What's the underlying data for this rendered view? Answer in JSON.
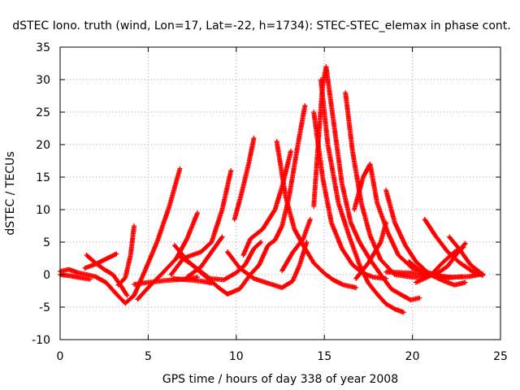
{
  "chart_data": {
    "type": "scatter",
    "title": "dSTEC Iono. truth (wind, Lon=17, Lat=-22, h=1734): STEC-STEC_elemax in phase cont.",
    "xlabel": "GPS time / hours of day 338 of year 2008",
    "ylabel": "dSTEC  / TECUs",
    "xlim": [
      0,
      25
    ],
    "ylim": [
      -10,
      35
    ],
    "xticks": [
      0,
      5,
      10,
      15,
      20,
      25
    ],
    "yticks": [
      -10,
      -5,
      0,
      5,
      10,
      15,
      20,
      25,
      30,
      35
    ],
    "grid": true,
    "marker": "plus",
    "color": "#ff0000",
    "tracks": [
      [
        [
          0,
          0.5
        ],
        [
          0.5,
          0.8
        ],
        [
          1,
          0.3
        ],
        [
          1.5,
          0
        ],
        [
          2,
          -0.3
        ],
        [
          2.6,
          -1.2
        ],
        [
          3.2,
          -3
        ],
        [
          3.7,
          -4.4
        ],
        [
          4.2,
          -3.2
        ],
        [
          4.8,
          0.5
        ],
        [
          5.5,
          5
        ],
        [
          6.2,
          10.5
        ],
        [
          6.8,
          16.3
        ]
      ],
      [
        [
          0,
          0
        ],
        [
          0.6,
          -0.2
        ],
        [
          1.2,
          -0.5
        ],
        [
          1.7,
          -0.7
        ]
      ],
      [
        [
          1.5,
          3
        ],
        [
          2,
          1.8
        ],
        [
          2.5,
          0.8
        ],
        [
          3,
          0
        ],
        [
          3.4,
          -1.5
        ],
        [
          3.8,
          -3.2
        ]
      ],
      [
        [
          1.4,
          1
        ],
        [
          2,
          1.6
        ],
        [
          2.6,
          2.4
        ],
        [
          3.2,
          3.2
        ]
      ],
      [
        [
          3.3,
          -1.6
        ],
        [
          3.7,
          -0.5
        ],
        [
          4,
          3
        ],
        [
          4.2,
          7.5
        ]
      ],
      [
        [
          4.4,
          -3.8
        ],
        [
          5,
          -2
        ],
        [
          5.8,
          0.2
        ],
        [
          6.6,
          2.5
        ],
        [
          7.2,
          5.5
        ],
        [
          7.8,
          9.5
        ]
      ],
      [
        [
          4.2,
          -1.5
        ],
        [
          5,
          -1.2
        ],
        [
          6,
          -0.9
        ],
        [
          7,
          -0.7
        ],
        [
          7.8,
          -0.4
        ]
      ],
      [
        [
          6.3,
          0
        ],
        [
          7,
          2.5
        ],
        [
          8,
          3.5
        ],
        [
          8.6,
          5
        ],
        [
          9.2,
          10
        ],
        [
          9.7,
          16
        ]
      ],
      [
        [
          6.5,
          4.5
        ],
        [
          7.2,
          2.2
        ],
        [
          8,
          0.3
        ],
        [
          9,
          -2
        ],
        [
          9.5,
          -3
        ],
        [
          10.2,
          -2.2
        ],
        [
          10.8,
          0
        ],
        [
          11.3,
          1.5
        ]
      ],
      [
        [
          6.7,
          3
        ],
        [
          7.5,
          1.5
        ],
        [
          8.5,
          -0.6
        ],
        [
          9.3,
          -0.8
        ],
        [
          10,
          0.3
        ],
        [
          10.5,
          1.5
        ],
        [
          11,
          4
        ],
        [
          11.4,
          5
        ]
      ],
      [
        [
          6.4,
          -0.6
        ],
        [
          7.2,
          -0.8
        ],
        [
          8,
          -1
        ],
        [
          8.6,
          -1.3
        ]
      ],
      [
        [
          9.9,
          8.5
        ],
        [
          10.3,
          12.5
        ],
        [
          10.7,
          17
        ],
        [
          11,
          21
        ]
      ],
      [
        [
          10.4,
          3
        ],
        [
          10.8,
          5.5
        ],
        [
          11.5,
          7
        ],
        [
          12.2,
          10
        ],
        [
          12.6,
          13.5
        ],
        [
          13.1,
          19
        ]
      ],
      [
        [
          9.5,
          3.5
        ],
        [
          10.2,
          1
        ],
        [
          11,
          -0.6
        ],
        [
          12,
          -1.5
        ],
        [
          12.6,
          -2
        ],
        [
          13.2,
          -1
        ],
        [
          13.6,
          1.5
        ],
        [
          14,
          5
        ]
      ],
      [
        [
          11.3,
          1.5
        ],
        [
          11.8,
          4.5
        ],
        [
          12.2,
          5.3
        ],
        [
          12.6,
          7.5
        ],
        [
          13,
          12
        ],
        [
          13.5,
          20
        ],
        [
          13.9,
          26
        ]
      ],
      [
        [
          12.3,
          20.5
        ],
        [
          12.8,
          12
        ],
        [
          13.3,
          7
        ],
        [
          13.8,
          4.5
        ],
        [
          14.4,
          1.8
        ],
        [
          15,
          0.2
        ],
        [
          15.5,
          -0.8
        ],
        [
          16.1,
          -1.6
        ],
        [
          16.8,
          -2
        ]
      ],
      [
        [
          14.4,
          10.5
        ],
        [
          14.7,
          22
        ],
        [
          14.9,
          29
        ],
        [
          15.1,
          32
        ],
        [
          15.5,
          24
        ],
        [
          16,
          14
        ],
        [
          16.5,
          8
        ],
        [
          17,
          5
        ],
        [
          17.6,
          2.3
        ],
        [
          18.2,
          0
        ],
        [
          18.8,
          -2.2
        ],
        [
          19.3,
          -3
        ],
        [
          19.9,
          -3.9
        ],
        [
          20.4,
          -3.6
        ]
      ],
      [
        [
          14.8,
          30
        ],
        [
          15.2,
          20
        ],
        [
          15.8,
          11
        ],
        [
          16.4,
          6
        ],
        [
          17,
          1.5
        ],
        [
          17.5,
          -1.3
        ],
        [
          18,
          -3
        ],
        [
          18.5,
          -4.5
        ],
        [
          19,
          -5.3
        ],
        [
          19.5,
          -5.8
        ]
      ],
      [
        [
          14.4,
          25
        ],
        [
          14.9,
          15
        ],
        [
          15.4,
          8
        ],
        [
          16,
          4
        ],
        [
          16.6,
          1.5
        ],
        [
          17.2,
          0.2
        ],
        [
          17.8,
          -0.4
        ],
        [
          18.5,
          -0.6
        ]
      ],
      [
        [
          16.2,
          28
        ],
        [
          16.6,
          19
        ],
        [
          17.1,
          11
        ],
        [
          17.6,
          6
        ],
        [
          18.2,
          2.3
        ],
        [
          19,
          0
        ],
        [
          20,
          -0.4
        ],
        [
          20.8,
          -0.3
        ]
      ],
      [
        [
          16.7,
          10
        ],
        [
          17.2,
          15
        ],
        [
          17.6,
          17
        ],
        [
          18,
          11
        ],
        [
          18.6,
          6.5
        ],
        [
          19.2,
          3
        ],
        [
          20,
          1
        ],
        [
          21,
          0.2
        ],
        [
          22,
          -0.5
        ],
        [
          22.8,
          -0.3
        ]
      ],
      [
        [
          18.5,
          13
        ],
        [
          19,
          8
        ],
        [
          19.6,
          4.5
        ],
        [
          20.2,
          2
        ],
        [
          21,
          0
        ],
        [
          21.8,
          -1
        ],
        [
          22.4,
          -1.6
        ],
        [
          23,
          -1.2
        ]
      ],
      [
        [
          19.8,
          2
        ],
        [
          20.5,
          0.5
        ],
        [
          21.3,
          0
        ],
        [
          22,
          1.3
        ],
        [
          22.6,
          3.5
        ],
        [
          23,
          4.8
        ]
      ],
      [
        [
          18.5,
          0.4
        ],
        [
          19.4,
          0.3
        ],
        [
          20.4,
          0.2
        ],
        [
          21.4,
          -0.2
        ],
        [
          22.3,
          -0.4
        ],
        [
          23.2,
          -0.3
        ],
        [
          24,
          0.1
        ]
      ],
      [
        [
          20.7,
          8.5
        ],
        [
          21.3,
          6
        ],
        [
          22,
          3.5
        ],
        [
          22.7,
          1.8
        ],
        [
          23.4,
          0.5
        ],
        [
          24,
          -0.1
        ]
      ],
      [
        [
          22.1,
          5.8
        ],
        [
          22.7,
          3.8
        ],
        [
          23.3,
          1.5
        ],
        [
          24,
          0
        ]
      ],
      [
        [
          20.2,
          -1.2
        ],
        [
          21,
          -0.2
        ],
        [
          21.7,
          1.8
        ],
        [
          22.4,
          3.5
        ],
        [
          22.9,
          4.2
        ]
      ],
      [
        [
          16.8,
          -0.6
        ],
        [
          17.5,
          1.8
        ],
        [
          18.2,
          5
        ],
        [
          18.5,
          8
        ]
      ],
      [
        [
          12.6,
          0.6
        ],
        [
          13.2,
          3.4
        ],
        [
          13.8,
          5.5
        ],
        [
          14.2,
          8.5
        ]
      ],
      [
        [
          7.2,
          -0.4
        ],
        [
          8,
          1.2
        ],
        [
          8.6,
          3.5
        ],
        [
          9.2,
          5.8
        ]
      ]
    ]
  }
}
